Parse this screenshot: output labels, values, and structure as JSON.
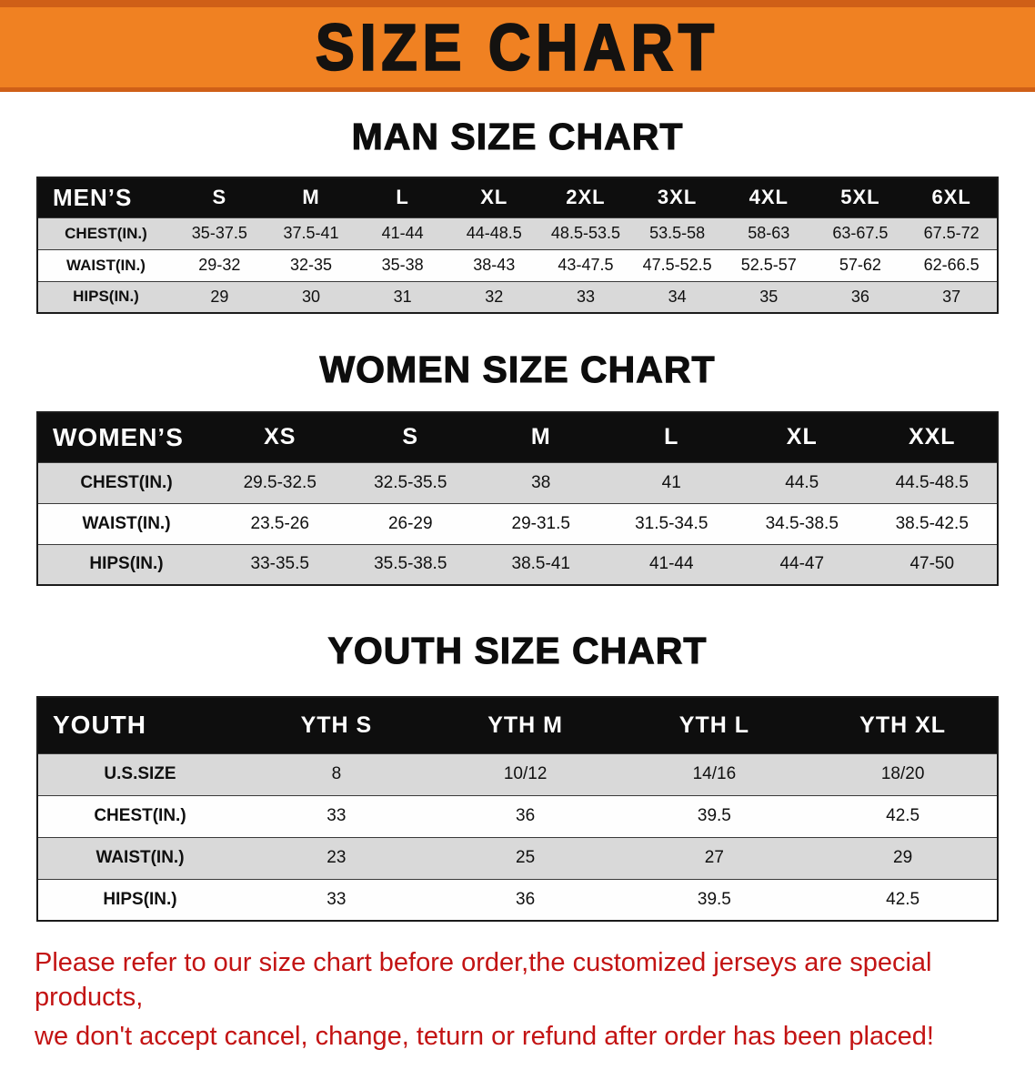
{
  "banner": {
    "title": "SIZE CHART"
  },
  "colors": {
    "banner_bg": "#f08122",
    "banner_edge": "#cf5f17",
    "title_color": "#141210",
    "table_header_bg": "#0e0e0e",
    "row_stripe": "#d9d9d9",
    "notice_color": "#c31313"
  },
  "sections": [
    {
      "heading": "MAN SIZE CHART",
      "table": {
        "header": [
          "MEN’S",
          "S",
          "M",
          "L",
          "XL",
          "2XL",
          "3XL",
          "4XL",
          "5XL",
          "6XL"
        ],
        "rows": [
          {
            "label": "CHEST(IN.)",
            "values": [
              "35-37.5",
              "37.5-41",
              "41-44",
              "44-48.5",
              "48.5-53.5",
              "53.5-58",
              "58-63",
              "63-67.5",
              "67.5-72"
            ]
          },
          {
            "label": "WAIST(IN.)",
            "values": [
              "29-32",
              "32-35",
              "35-38",
              "38-43",
              "43-47.5",
              "47.5-52.5",
              "52.5-57",
              "57-62",
              "62-66.5"
            ]
          },
          {
            "label": "HIPS(IN.)",
            "values": [
              "29",
              "30",
              "31",
              "32",
              "33",
              "34",
              "35",
              "36",
              "37"
            ]
          }
        ]
      }
    },
    {
      "heading": "WOMEN SIZE CHART",
      "table": {
        "header": [
          "WOMEN’S",
          "XS",
          "S",
          "M",
          "L",
          "XL",
          "XXL"
        ],
        "rows": [
          {
            "label": "CHEST(IN.)",
            "values": [
              "29.5-32.5",
              "32.5-35.5",
              "38",
              "41",
              "44.5",
              "44.5-48.5"
            ]
          },
          {
            "label": "WAIST(IN.)",
            "values": [
              "23.5-26",
              "26-29",
              "29-31.5",
              "31.5-34.5",
              "34.5-38.5",
              "38.5-42.5"
            ]
          },
          {
            "label": "HIPS(IN.)",
            "values": [
              "33-35.5",
              "35.5-38.5",
              "38.5-41",
              "41-44",
              "44-47",
              "47-50"
            ]
          }
        ]
      }
    },
    {
      "heading": "YOUTH SIZE CHART",
      "table": {
        "header": [
          "YOUTH",
          "YTH S",
          "YTH M",
          "YTH L",
          "YTH XL"
        ],
        "rows": [
          {
            "label": "U.S.SIZE",
            "values": [
              "8",
              "10/12",
              "14/16",
              "18/20"
            ]
          },
          {
            "label": "CHEST(IN.)",
            "values": [
              "33",
              "36",
              "39.5",
              "42.5"
            ]
          },
          {
            "label": "WAIST(IN.)",
            "values": [
              "23",
              "25",
              "27",
              "29"
            ]
          },
          {
            "label": "HIPS(IN.)",
            "values": [
              "33",
              "36",
              "39.5",
              "42.5"
            ]
          }
        ]
      }
    }
  ],
  "footer": {
    "line1": "Please refer to our size chart before order,the customized jerseys are special products,",
    "line2": "we don't accept cancel, change, teturn or refund after order has been placed!"
  }
}
